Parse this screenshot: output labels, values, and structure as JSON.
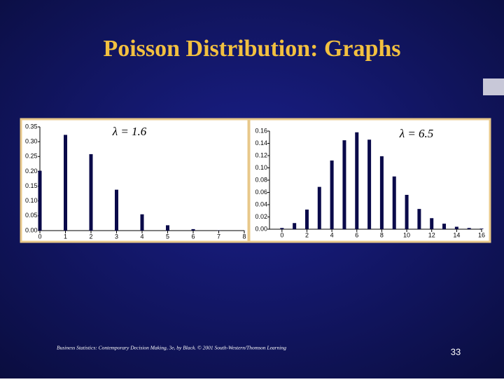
{
  "slide": {
    "title": "Poisson Distribution: Graphs",
    "footer": "Business Statistics: Contemporary Decision Making, 3e, by Black. © 2001 South-Western/Thomson Learning",
    "page_number": "33"
  },
  "chart_data": [
    {
      "type": "bar",
      "annotation": "λ = 1.6",
      "color": "#0a0a4a",
      "x": [
        0,
        1,
        2,
        3,
        4,
        5,
        6,
        7,
        8
      ],
      "values": [
        0.202,
        0.323,
        0.258,
        0.138,
        0.055,
        0.018,
        0.005,
        0.001,
        0.0002
      ],
      "xlim": [
        0,
        8
      ],
      "xticks": [
        0,
        1,
        2,
        3,
        4,
        5,
        6,
        7,
        8
      ],
      "ylim": [
        0,
        0.35
      ],
      "yticks": [
        {
          "value": 0,
          "label": "0.00"
        },
        {
          "value": 0.05,
          "label": "0.05"
        },
        {
          "value": 0.1,
          "label": "0.10"
        },
        {
          "value": 0.15,
          "label": "0.15"
        },
        {
          "value": 0.2,
          "label": "0.20"
        },
        {
          "value": 0.25,
          "label": "0.25"
        },
        {
          "value": 0.3,
          "label": "0.30"
        },
        {
          "value": 0.35,
          "label": "0.35"
        }
      ]
    },
    {
      "type": "bar",
      "annotation": "λ = 6.5",
      "color": "#0a0a4a",
      "x": [
        0,
        1,
        2,
        3,
        4,
        5,
        6,
        7,
        8,
        9,
        10,
        11,
        12,
        13,
        14,
        15,
        16
      ],
      "values": [
        0.002,
        0.01,
        0.032,
        0.069,
        0.112,
        0.145,
        0.158,
        0.146,
        0.119,
        0.086,
        0.056,
        0.033,
        0.018,
        0.009,
        0.004,
        0.002,
        0.001
      ],
      "xlim": [
        -1,
        16
      ],
      "xticks": [
        0,
        2,
        4,
        6,
        8,
        10,
        12,
        14,
        16
      ],
      "ylim": [
        0,
        0.16
      ],
      "yticks": [
        {
          "value": 0,
          "label": "0.00"
        },
        {
          "value": 0.02,
          "label": "0.02"
        },
        {
          "value": 0.04,
          "label": "0.04"
        },
        {
          "value": 0.06,
          "label": "0.06"
        },
        {
          "value": 0.08,
          "label": "0.08"
        },
        {
          "value": 0.1,
          "label": "0.10"
        },
        {
          "value": 0.12,
          "label": "0.12"
        },
        {
          "value": 0.14,
          "label": "0.14"
        },
        {
          "value": 0.16,
          "label": "0.16"
        }
      ]
    }
  ]
}
